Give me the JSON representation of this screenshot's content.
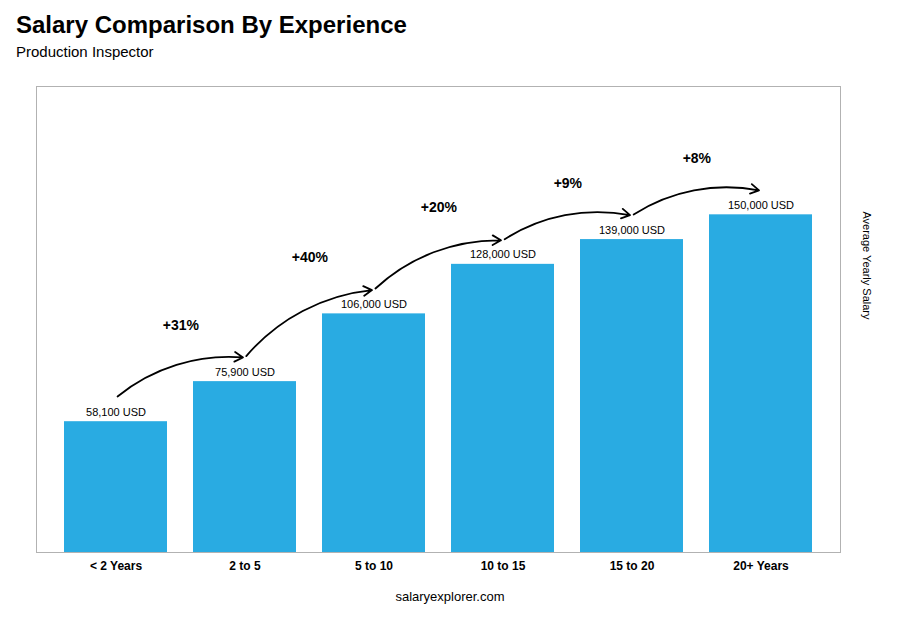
{
  "chart_data": {
    "type": "bar",
    "title": "Salary Comparison By Experience",
    "subtitle": "Production Inspector",
    "categories": [
      "< 2 Years",
      "2 to 5",
      "5 to 10",
      "10 to 15",
      "15 to 20",
      "20+ Years"
    ],
    "values": [
      58100,
      75900,
      106000,
      128000,
      139000,
      150000
    ],
    "value_labels": [
      "58,100 USD",
      "75,900 USD",
      "106,000 USD",
      "128,000 USD",
      "139,000 USD",
      "150,000 USD"
    ],
    "data_labels": true,
    "color": "#29ABE2",
    "ylabel": "Average Yearly Salary",
    "ylim": [
      0,
      207000
    ],
    "tick_labels": "x",
    "annotations": [
      "+31%",
      "+40%",
      "+20%",
      "+9%",
      "+8%"
    ],
    "caption": "salaryexplorer.com"
  }
}
